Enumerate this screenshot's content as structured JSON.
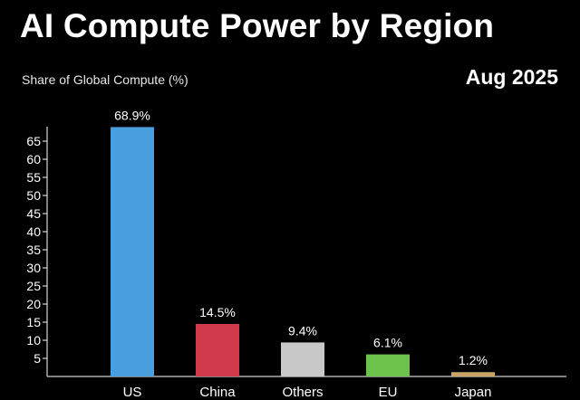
{
  "header": {
    "title": "AI Compute Power by Region",
    "date": "Aug 2025"
  },
  "chart_data": {
    "type": "bar",
    "title": "AI Compute Power by Region",
    "ylabel": "Share of Global Compute (%)",
    "xlabel": "",
    "categories": [
      "US",
      "China",
      "Others",
      "EU",
      "Japan"
    ],
    "values": [
      68.9,
      14.5,
      9.4,
      6.1,
      1.2
    ],
    "value_labels": [
      "68.9%",
      "14.5%",
      "9.4%",
      "6.1%",
      "1.2%"
    ],
    "colors": [
      "#4a9fde",
      "#d13a4a",
      "#c8c8c8",
      "#6cc24a",
      "#c9a565"
    ],
    "ylim": [
      0,
      70
    ],
    "yticks": [
      5,
      10,
      15,
      20,
      25,
      30,
      35,
      40,
      45,
      50,
      55,
      60,
      65
    ],
    "grid": false,
    "legend": "none"
  }
}
